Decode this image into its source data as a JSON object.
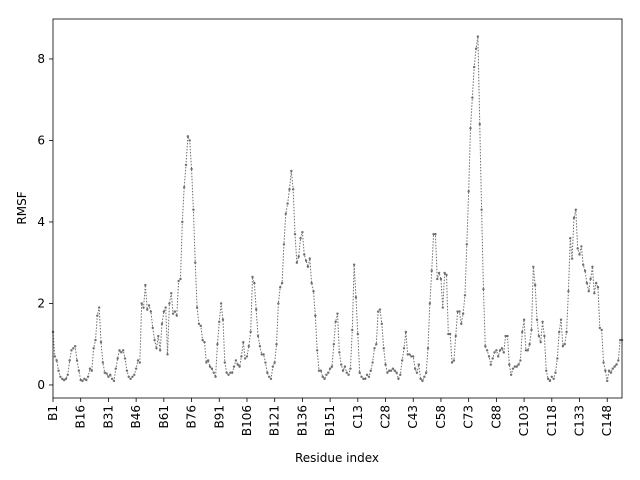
{
  "chart_data": {
    "type": "line",
    "xlabel": "Residue index",
    "ylabel": "RMSF",
    "categories": [
      "B1",
      null,
      null,
      null,
      null,
      null,
      null,
      null,
      null,
      null,
      null,
      null,
      null,
      null,
      null,
      "B16",
      null,
      null,
      null,
      null,
      null,
      null,
      null,
      null,
      null,
      null,
      null,
      null,
      null,
      null,
      "B31",
      null,
      null,
      null,
      null,
      null,
      null,
      null,
      null,
      null,
      null,
      null,
      null,
      null,
      null,
      "B46",
      null,
      null,
      null,
      null,
      null,
      null,
      null,
      null,
      null,
      null,
      null,
      null,
      null,
      null,
      "B61",
      null,
      null,
      null,
      null,
      null,
      null,
      null,
      null,
      null,
      null,
      null,
      null,
      null,
      null,
      "B76",
      null,
      null,
      null,
      null,
      null,
      null,
      null,
      null,
      null,
      null,
      null,
      null,
      null,
      null,
      "B91",
      null,
      null,
      null,
      null,
      null,
      null,
      null,
      null,
      null,
      null,
      null,
      null,
      null,
      null,
      "B106",
      null,
      null,
      null,
      null,
      null,
      null,
      null,
      null,
      null,
      null,
      null,
      null,
      null,
      null,
      "B121",
      null,
      null,
      null,
      null,
      null,
      null,
      null,
      null,
      null,
      null,
      null,
      null,
      null,
      null,
      "B136",
      null,
      null,
      null,
      null,
      null,
      null,
      null,
      null,
      null,
      null,
      null,
      null,
      null,
      null,
      "B151",
      null,
      null,
      null,
      null,
      null,
      null,
      null,
      null,
      null,
      null,
      null,
      null,
      null,
      null,
      "C13",
      null,
      null,
      null,
      null,
      null,
      null,
      null,
      null,
      null,
      null,
      null,
      null,
      null,
      null,
      "C28",
      null,
      null,
      null,
      null,
      null,
      null,
      null,
      null,
      null,
      null,
      null,
      null,
      null,
      null,
      "C43",
      null,
      null,
      null,
      null,
      null,
      null,
      null,
      null,
      null,
      null,
      null,
      null,
      null,
      null,
      "C58",
      null,
      null,
      null,
      null,
      null,
      null,
      null,
      null,
      null,
      null,
      null,
      null,
      null,
      null,
      "C73",
      null,
      null,
      null,
      null,
      null,
      null,
      null,
      null,
      null,
      null,
      null,
      null,
      null,
      null,
      "C88",
      null,
      null,
      null,
      null,
      null,
      null,
      null,
      null,
      null,
      null,
      null,
      null,
      null,
      null,
      "C103",
      null,
      null,
      null,
      null,
      null,
      null,
      null,
      null,
      null,
      null,
      null,
      null,
      null,
      null,
      "C118",
      null,
      null,
      null,
      null,
      null,
      null,
      null,
      null,
      null,
      null,
      null,
      null,
      null,
      null,
      "C133",
      null,
      null,
      null,
      null,
      null,
      null,
      null,
      null,
      null,
      null,
      null,
      null,
      null,
      null,
      "C148",
      null,
      null,
      null,
      null,
      null,
      null,
      null,
      null
    ],
    "values": [
      1.3,
      0.7,
      0.6,
      0.35,
      0.2,
      0.15,
      0.12,
      0.15,
      0.25,
      0.6,
      0.85,
      0.9,
      0.95,
      0.6,
      0.35,
      0.12,
      0.1,
      0.15,
      0.12,
      0.2,
      0.4,
      0.35,
      0.9,
      1.1,
      1.7,
      1.9,
      1.05,
      0.55,
      0.3,
      0.28,
      0.2,
      0.25,
      0.15,
      0.1,
      0.4,
      0.65,
      0.85,
      0.8,
      0.85,
      0.65,
      0.35,
      0.2,
      0.15,
      0.2,
      0.25,
      0.4,
      0.6,
      0.55,
      2.0,
      1.9,
      2.45,
      1.85,
      1.95,
      1.8,
      1.4,
      1.1,
      0.9,
      1.2,
      0.85,
      1.5,
      1.8,
      1.9,
      0.75,
      2.0,
      2.25,
      1.75,
      1.8,
      1.7,
      2.55,
      2.6,
      4.0,
      4.85,
      5.4,
      6.1,
      6.0,
      5.3,
      4.3,
      3.0,
      1.9,
      1.5,
      1.45,
      1.1,
      1.05,
      0.55,
      0.6,
      0.45,
      0.4,
      0.3,
      0.2,
      1.0,
      1.55,
      2.0,
      1.6,
      0.55,
      0.3,
      0.25,
      0.3,
      0.3,
      0.45,
      0.6,
      0.5,
      0.45,
      0.7,
      1.05,
      0.65,
      0.7,
      0.95,
      1.3,
      2.65,
      2.5,
      1.85,
      1.2,
      0.95,
      0.75,
      0.75,
      0.55,
      0.3,
      0.2,
      0.15,
      0.45,
      0.55,
      1.0,
      2.0,
      2.4,
      2.5,
      3.45,
      4.2,
      4.45,
      4.8,
      5.25,
      4.8,
      3.7,
      3.0,
      3.15,
      3.6,
      3.75,
      3.2,
      3.05,
      2.9,
      3.1,
      2.5,
      2.3,
      1.7,
      0.85,
      0.35,
      0.35,
      0.2,
      0.15,
      0.25,
      0.3,
      0.4,
      0.45,
      1.0,
      1.55,
      1.75,
      0.8,
      0.5,
      0.35,
      0.45,
      0.3,
      0.25,
      0.4,
      1.35,
      2.95,
      2.15,
      1.25,
      0.3,
      0.2,
      0.15,
      0.15,
      0.25,
      0.2,
      0.35,
      0.55,
      0.9,
      1.0,
      1.8,
      1.85,
      1.5,
      0.9,
      0.5,
      0.3,
      0.35,
      0.35,
      0.4,
      0.35,
      0.3,
      0.15,
      0.25,
      0.6,
      0.9,
      1.3,
      0.75,
      0.75,
      0.7,
      0.7,
      0.4,
      0.3,
      0.5,
      0.15,
      0.1,
      0.2,
      0.3,
      0.9,
      2.0,
      2.8,
      3.7,
      3.7,
      2.6,
      2.75,
      2.6,
      1.9,
      2.75,
      2.7,
      1.25,
      1.25,
      0.55,
      0.6,
      1.2,
      1.8,
      1.8,
      1.5,
      1.75,
      2.2,
      3.45,
      4.75,
      6.3,
      7.05,
      7.8,
      8.25,
      8.55,
      6.4,
      4.3,
      2.35,
      0.95,
      0.85,
      0.7,
      0.5,
      0.65,
      0.8,
      0.85,
      0.7,
      0.85,
      0.9,
      0.8,
      1.2,
      1.2,
      0.5,
      0.25,
      0.4,
      0.45,
      0.45,
      0.5,
      0.6,
      1.3,
      1.6,
      0.85,
      0.85,
      1.0,
      1.35,
      2.9,
      2.45,
      1.6,
      1.2,
      1.05,
      1.55,
      1.2,
      0.35,
      0.15,
      0.1,
      0.2,
      0.15,
      0.3,
      0.65,
      1.3,
      1.6,
      0.95,
      1.0,
      1.3,
      2.3,
      3.6,
      3.1,
      4.1,
      4.3,
      3.35,
      3.2,
      3.4,
      2.95,
      2.8,
      2.5,
      2.3,
      2.6,
      2.9,
      2.25,
      2.5,
      2.4,
      1.4,
      1.35,
      0.55,
      0.35,
      0.1,
      0.35,
      0.3,
      0.4,
      0.45,
      0.5,
      0.6,
      1.1,
      1.1
    ],
    "color": "#6e6e6e",
    "ylim": [
      -0.32,
      8.98
    ],
    "yticks": [
      0,
      2,
      4,
      6,
      8
    ]
  }
}
